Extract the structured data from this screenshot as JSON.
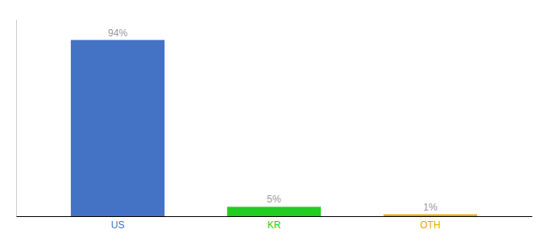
{
  "chart_data": {
    "type": "bar",
    "categories": [
      "US",
      "KR",
      "OTH"
    ],
    "values": [
      94,
      5,
      1
    ],
    "value_labels": [
      "94%",
      "5%",
      "1%"
    ],
    "colors": [
      "#4472c4",
      "#22cc22",
      "#f0a500"
    ],
    "ylim": [
      0,
      105
    ],
    "data_labels": true,
    "tick_labels": "x",
    "grid": false
  }
}
